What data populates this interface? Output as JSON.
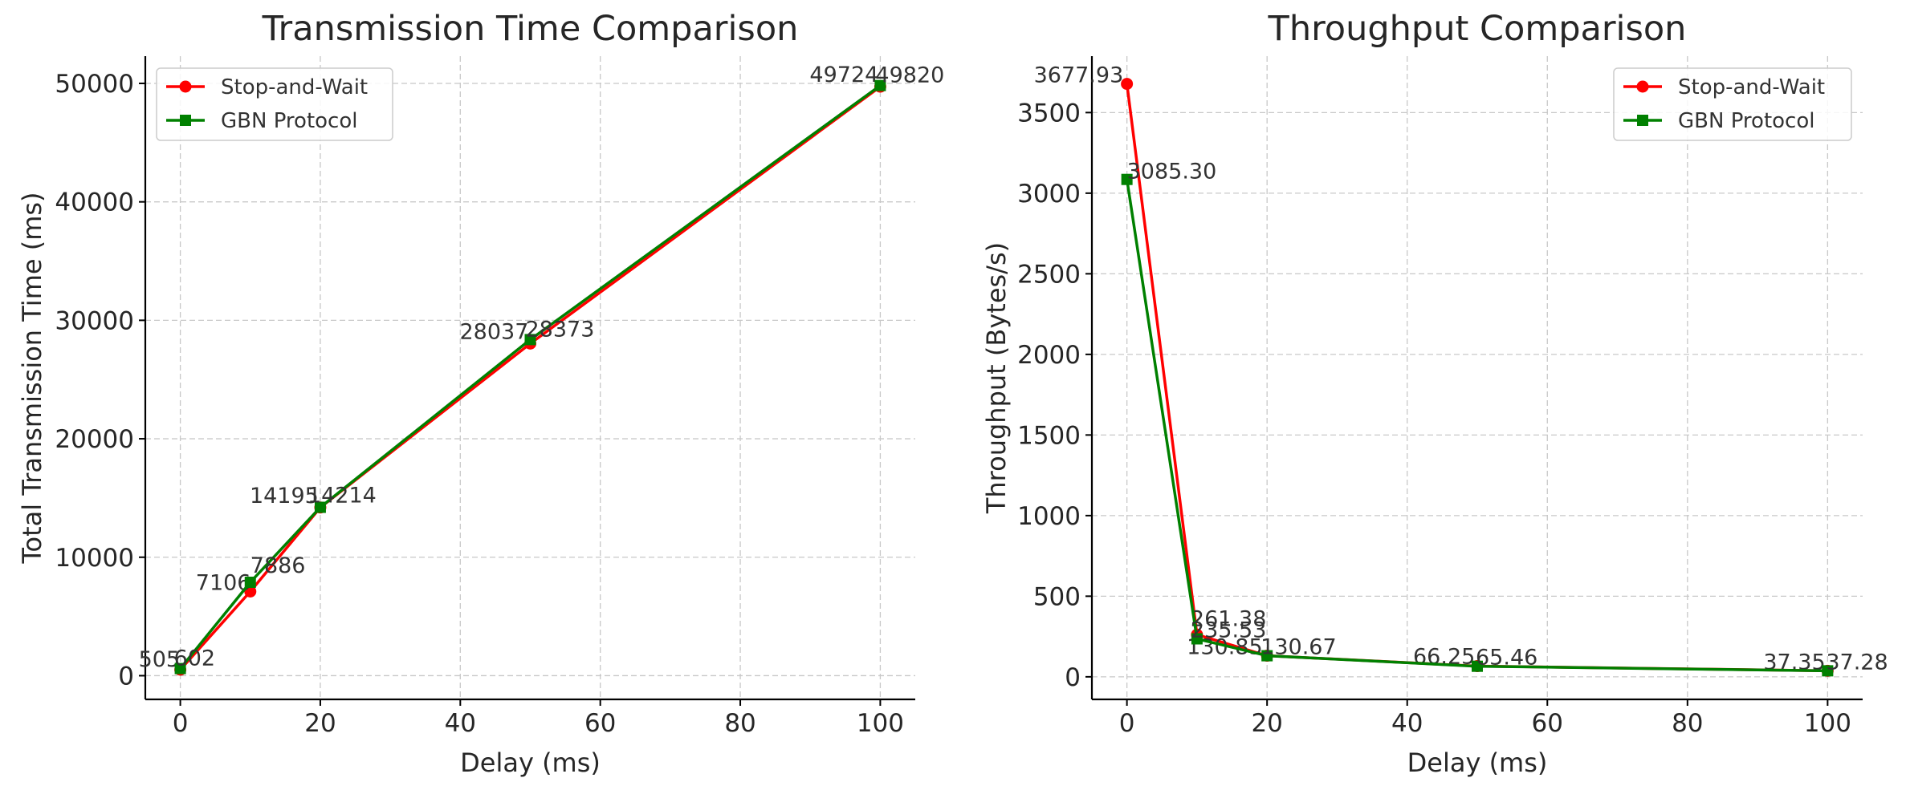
{
  "chart_data": [
    {
      "type": "line",
      "title": "Transmission Time Comparison",
      "xlabel": "Delay (ms)",
      "ylabel": "Total Transmission Time (ms)",
      "x": [
        0,
        10,
        20,
        50,
        100
      ],
      "xlim": [
        -5,
        105
      ],
      "ylim": [
        -2000,
        52300
      ],
      "xticks": [
        0,
        20,
        40,
        60,
        80,
        100
      ],
      "yticks": [
        0,
        10000,
        20000,
        30000,
        40000,
        50000
      ],
      "grid": true,
      "legend_position": "upper left",
      "series": [
        {
          "name": "Stop-and-Wait",
          "color": "#ff0000",
          "marker": "circle",
          "values": [
            505,
            7106,
            14195,
            28037,
            49724
          ],
          "labels": [
            "505",
            "7106",
            "14195",
            "28037",
            "49724"
          ]
        },
        {
          "name": "GBN Protocol",
          "color": "#008000",
          "marker": "square",
          "values": [
            602,
            7886,
            14214,
            28373,
            49820
          ],
          "labels": [
            "602",
            "7886",
            "14214",
            "28373",
            "49820"
          ]
        }
      ]
    },
    {
      "type": "line",
      "title": "Throughput Comparison",
      "xlabel": "Delay (ms)",
      "ylabel": "Throughput (Bytes/s)",
      "x": [
        0,
        10,
        20,
        50,
        100
      ],
      "xlim": [
        -5,
        105
      ],
      "ylim": [
        -140,
        3850
      ],
      "xticks": [
        0,
        20,
        40,
        60,
        80,
        100
      ],
      "yticks": [
        0,
        500,
        1000,
        1500,
        2000,
        2500,
        3000,
        3500
      ],
      "grid": true,
      "legend_position": "upper right",
      "series": [
        {
          "name": "Stop-and-Wait",
          "color": "#ff0000",
          "marker": "circle",
          "values": [
            3677.93,
            261.38,
            130.85,
            66.25,
            37.35
          ],
          "labels": [
            "3677.93",
            "261.38",
            "130.85",
            "66.25",
            "37.35"
          ]
        },
        {
          "name": "GBN Protocol",
          "color": "#008000",
          "marker": "square",
          "values": [
            3085.3,
            235.53,
            130.67,
            65.46,
            37.28
          ],
          "labels": [
            "3085.30",
            "235.53",
            "130.67",
            "65.46",
            "37.28"
          ]
        }
      ]
    }
  ]
}
